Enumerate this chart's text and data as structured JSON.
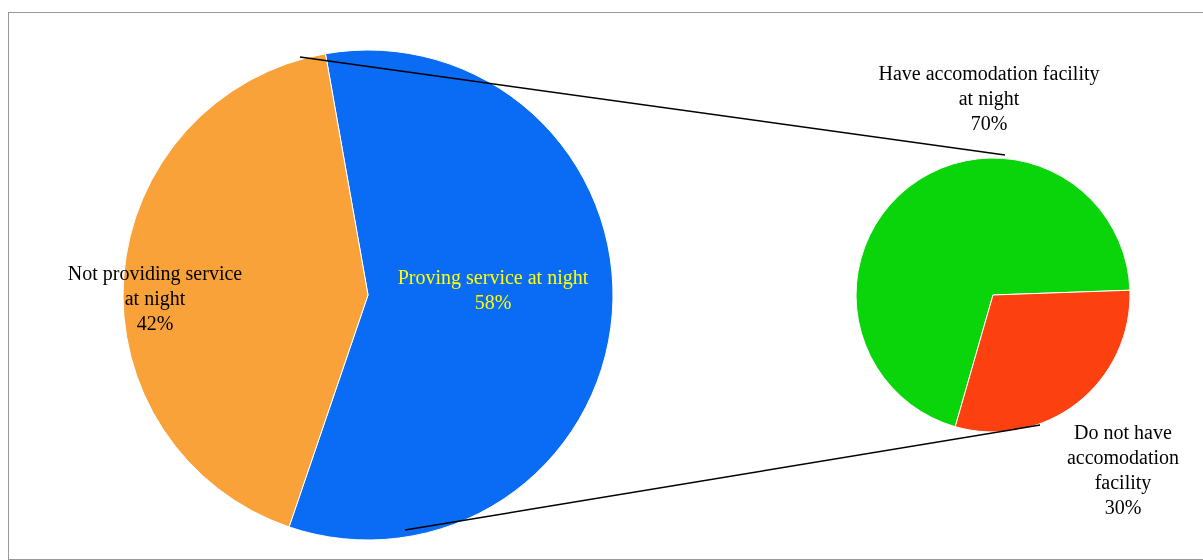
{
  "chart_data": [
    {
      "type": "pie",
      "categories": [
        "Proving service at night",
        "Not providing service at night"
      ],
      "values": [
        58,
        42
      ],
      "colors": [
        "#0a6cf5",
        "#f9a23a"
      ],
      "value_labels": [
        "58%",
        "42%"
      ]
    },
    {
      "type": "pie",
      "categories": [
        "Have accomodation facility at night",
        "Do not have accomodation facility"
      ],
      "values": [
        70,
        30
      ],
      "colors": [
        "#0ad40a",
        "#fc4010"
      ],
      "value_labels": [
        "70%",
        "30%"
      ]
    }
  ]
}
